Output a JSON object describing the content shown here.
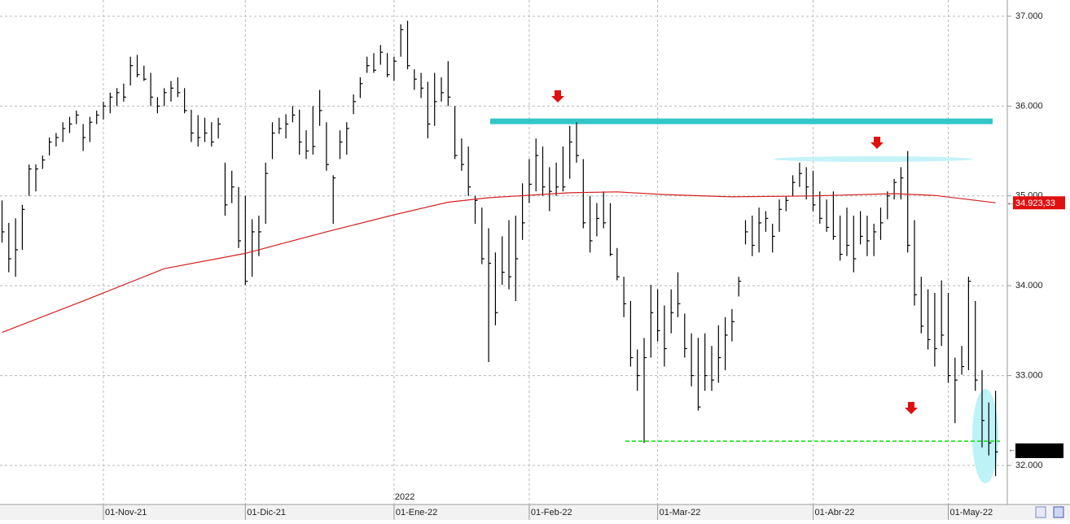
{
  "chart_data": {
    "type": "ohlc",
    "color": "#000000",
    "categories": [
      null,
      null,
      null,
      null,
      null,
      null,
      null,
      null,
      null,
      null,
      null,
      null,
      null,
      null,
      null,
      "01-Nov-21",
      null,
      null,
      null,
      null,
      null,
      null,
      null,
      null,
      null,
      null,
      null,
      null,
      null,
      null,
      null,
      null,
      null,
      null,
      null,
      null,
      "01-Dic-21",
      null,
      null,
      null,
      null,
      null,
      null,
      null,
      null,
      null,
      null,
      null,
      null,
      null,
      null,
      null,
      null,
      null,
      null,
      null,
      null,
      null,
      "01-Ene-22",
      null,
      null,
      null,
      null,
      null,
      null,
      null,
      null,
      null,
      null,
      null,
      null,
      null,
      null,
      null,
      null,
      null,
      null,
      null,
      "01-Feb-22",
      null,
      null,
      null,
      null,
      null,
      null,
      null,
      null,
      null,
      null,
      null,
      null,
      null,
      null,
      null,
      null,
      null,
      null,
      "01-Mar-22",
      null,
      null,
      null,
      null,
      null,
      null,
      null,
      null,
      null,
      null,
      null,
      null,
      null,
      null,
      null,
      null,
      null,
      null,
      null,
      null,
      null,
      null,
      "01-Abr-22",
      null,
      null,
      null,
      null,
      null,
      null,
      null,
      null,
      null,
      null,
      null,
      null,
      null,
      null,
      null,
      null,
      null,
      null,
      null,
      "01-May-22",
      null,
      null,
      null,
      null,
      null,
      null,
      null
    ],
    "year_label": "2022",
    "high": [
      34950,
      34700,
      34750,
      34900,
      35350,
      35350,
      35450,
      35650,
      35700,
      35820,
      35880,
      35950,
      35800,
      35880,
      35950,
      36050,
      36150,
      36200,
      36250,
      36550,
      36570,
      36450,
      36370,
      36100,
      36200,
      36280,
      36320,
      36200,
      35960,
      35900,
      35870,
      35820,
      35870,
      35370,
      35280,
      35100,
      35000,
      34740,
      34780,
      35370,
      35820,
      35870,
      35910,
      36000,
      35960,
      35730,
      36000,
      36180,
      35820,
      35230,
      35730,
      35820,
      36130,
      36320,
      36550,
      36590,
      36680,
      36590,
      36550,
      36910,
      36950,
      36410,
      36370,
      36270,
      36370,
      36320,
      36500,
      36000,
      35640,
      35550,
      35000,
      34870,
      34640,
      34370,
      34550,
      34730,
      34780,
      35140,
      35410,
      35640,
      35550,
      35320,
      35370,
      35550,
      35780,
      35820,
      35410,
      35000,
      34920,
      35050,
      34920,
      34420,
      34100,
      33830,
      33290,
      33420,
      34010,
      33960,
      33780,
      33960,
      34150,
      33690,
      33470,
      33420,
      33470,
      33330,
      33560,
      33650,
      33740,
      34100,
      34730,
      34780,
      34870,
      34830,
      34690,
      34960,
      35000,
      35230,
      35370,
      35320,
      35280,
      35050,
      34960,
      35050,
      34780,
      34870,
      34780,
      34830,
      34780,
      34690,
      34870,
      35050,
      35190,
      35320,
      35500,
      34730,
      34100,
      33960,
      33920,
      34060,
      33920,
      33200,
      33330,
      34100,
      33830,
      33060,
      32700,
      32830
    ],
    "low": [
      34480,
      34150,
      34100,
      34400,
      35000,
      35050,
      35300,
      35450,
      35550,
      35600,
      35700,
      35800,
      35500,
      35600,
      35800,
      35850,
      35920,
      36000,
      36050,
      36230,
      36320,
      36280,
      36000,
      35920,
      36000,
      36050,
      36100,
      35920,
      35600,
      35550,
      35600,
      35550,
      35640,
      34780,
      34920,
      34420,
      34010,
      34100,
      34330,
      34690,
      35410,
      35690,
      35640,
      35820,
      35460,
      35410,
      35460,
      35780,
      35280,
      34690,
      35410,
      35460,
      35910,
      36090,
      36370,
      36370,
      36460,
      36320,
      36280,
      36550,
      36410,
      36180,
      36090,
      35640,
      35780,
      36050,
      36000,
      35410,
      35280,
      35000,
      34690,
      34240,
      33150,
      33560,
      34010,
      33960,
      33830,
      34510,
      34920,
      35050,
      35000,
      34830,
      35000,
      35050,
      35190,
      35370,
      34640,
      34370,
      34550,
      34640,
      34330,
      34060,
      33650,
      33100,
      32830,
      32250,
      33200,
      33380,
      33100,
      33470,
      33650,
      33200,
      32880,
      32610,
      32830,
      32830,
      32920,
      33060,
      33380,
      33880,
      34460,
      34330,
      34370,
      34600,
      34370,
      34600,
      34830,
      35000,
      35100,
      34960,
      34830,
      34690,
      34600,
      34510,
      34280,
      34330,
      34150,
      34460,
      34330,
      34330,
      34510,
      34740,
      34960,
      34960,
      34370,
      33780,
      33470,
      33290,
      33100,
      33330,
      32920,
      32470,
      33010,
      33060,
      32830,
      32200,
      32110,
      31880
    ],
    "close": [
      34600,
      34300,
      34400,
      34850,
      35300,
      35300,
      35400,
      35600,
      35650,
      35750,
      35800,
      35900,
      35650,
      35820,
      35900,
      36000,
      36100,
      36150,
      36100,
      36450,
      36350,
      36300,
      36100,
      36000,
      36150,
      36200,
      36150,
      35950,
      35700,
      35650,
      35700,
      35600,
      35800,
      34900,
      35100,
      34500,
      34050,
      34600,
      34600,
      35250,
      35700,
      35750,
      35800,
      35900,
      35600,
      35500,
      35550,
      35950,
      35350,
      35200,
      35600,
      35750,
      36050,
      36250,
      36450,
      36400,
      36600,
      36350,
      36500,
      36850,
      36450,
      36300,
      36200,
      35800,
      36050,
      36150,
      36100,
      35450,
      35350,
      35100,
      34950,
      34300,
      34250,
      33700,
      34150,
      34100,
      34300,
      34700,
      35130,
      35450,
      35100,
      35050,
      35100,
      35100,
      35600,
      35450,
      34700,
      34500,
      34750,
      34700,
      34350,
      34100,
      33800,
      33200,
      33000,
      33200,
      33700,
      33500,
      33300,
      33700,
      33800,
      33300,
      33000,
      32650,
      33000,
      32950,
      33200,
      33450,
      33600,
      34050,
      34600,
      34450,
      34700,
      34750,
      34550,
      34850,
      34950,
      35150,
      35250,
      35100,
      34900,
      34750,
      34650,
      34550,
      34350,
      34450,
      34300,
      34550,
      34500,
      34600,
      34700,
      35000,
      35150,
      35200,
      34450,
      33900,
      33550,
      33400,
      33300,
      33450,
      33000,
      32950,
      33100,
      34050,
      32950,
      32500,
      32250,
      32150
    ],
    "ma": {
      "color": "#d42020",
      "x": [
        0,
        12,
        24,
        36,
        48,
        58,
        66,
        72,
        84,
        91,
        98,
        108,
        120,
        132,
        138,
        147
      ],
      "values": [
        33480,
        33830,
        34190,
        34360,
        34600,
        34790,
        34930,
        34980,
        35035,
        35045,
        35015,
        34990,
        35000,
        35025,
        35005,
        34923.33
      ]
    },
    "price_tag": {
      "value": 34923.33,
      "label": "34.923,33",
      "color": "#e01010"
    },
    "reference_lines": [
      {
        "value": 35830,
        "color": "#33c6c9"
      },
      {
        "value": 35410,
        "color": "#c5f3f7"
      },
      {
        "value": 32270,
        "color": "#22dd22"
      }
    ],
    "ylim": [
      31565,
      37181
    ],
    "yticks": [
      {
        "value": 32000,
        "label": "32.000"
      },
      {
        "value": 33000,
        "label": "33.000"
      },
      {
        "value": 34000,
        "label": "34.000"
      },
      {
        "value": 35000,
        "label": "35.000"
      },
      {
        "value": 36000,
        "label": "36.000"
      },
      {
        "value": 37000,
        "label": "37.000"
      }
    ],
    "grid": true
  }
}
